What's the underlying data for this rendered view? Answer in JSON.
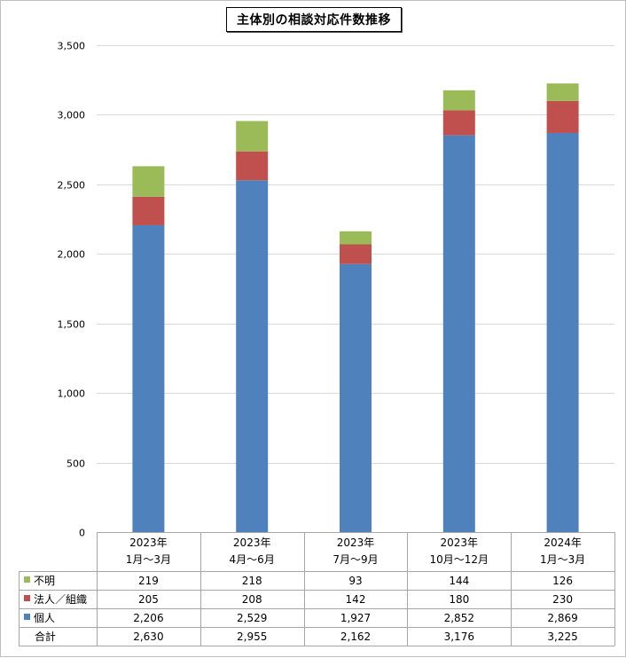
{
  "chart_data": {
    "type": "bar",
    "stacked": true,
    "title": "主体別の相談対応件数推移",
    "categories": [
      [
        "2023年",
        "1月～3月"
      ],
      [
        "2023年",
        "4月～6月"
      ],
      [
        "2023年",
        "7月～9月"
      ],
      [
        "2023年",
        "10月～12月"
      ],
      [
        "2024年",
        "1月～3月"
      ]
    ],
    "series": [
      {
        "name": "個人",
        "color": "#4f81bd",
        "values": [
          2206,
          2529,
          1927,
          2852,
          2869
        ],
        "labels": [
          "2,206",
          "2,529",
          "1,927",
          "2,852",
          "2,869"
        ]
      },
      {
        "name": "法人／組織",
        "color": "#c0504d",
        "values": [
          205,
          208,
          142,
          180,
          230
        ],
        "labels": [
          "205",
          "208",
          "142",
          "180",
          "230"
        ]
      },
      {
        "name": "不明",
        "color": "#9bbb59",
        "values": [
          219,
          218,
          93,
          144,
          126
        ],
        "labels": [
          "219",
          "218",
          "93",
          "144",
          "126"
        ]
      }
    ],
    "total": {
      "name": "合計",
      "values": [
        2630,
        2955,
        2162,
        3176,
        3225
      ],
      "labels": [
        "2,630",
        "2,955",
        "2,162",
        "3,176",
        "3,225"
      ]
    },
    "ylim": [
      0,
      3500
    ],
    "yticks": [
      0,
      500,
      1000,
      1500,
      2000,
      2500,
      3000,
      3500
    ],
    "ytick_labels": [
      "0",
      "500",
      "1,000",
      "1,500",
      "2,000",
      "2,500",
      "3,000",
      "3,500"
    ],
    "grid": true,
    "legend": "data-table"
  }
}
